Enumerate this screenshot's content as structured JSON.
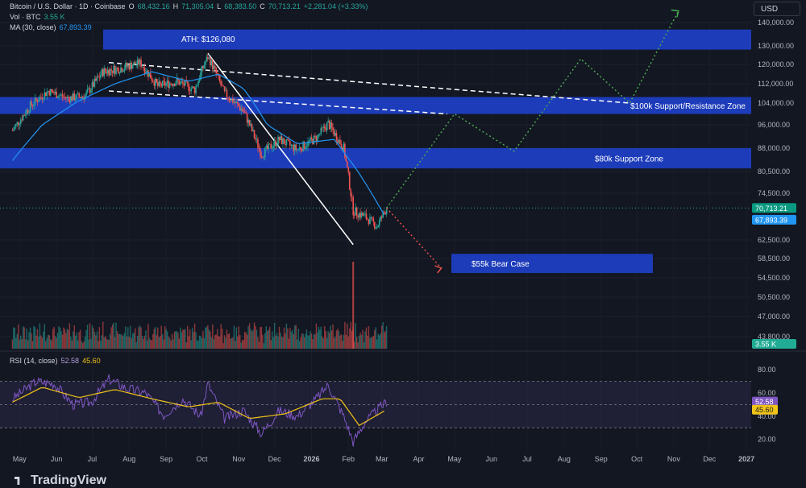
{
  "header": {
    "symbol": "Bitcoin / U.S. Dollar · 1D · Coinbase",
    "open_label": "O",
    "open": "68,432.16",
    "high_label": "H",
    "high": "71,305.04",
    "low_label": "L",
    "low": "68,383.50",
    "close_label": "C",
    "close": "70,713.21",
    "change": "+2,281.04 (+3.33%)",
    "vol_label": "Vol · BTC",
    "vol": "3.55 K",
    "ma_label": "MA (30, close)",
    "ma": "67,893.39",
    "rsi_label": "RSI (14, close)",
    "rsi": "52.58",
    "rsi_ma": "45.60"
  },
  "currency_button": "USD",
  "brand": "TradingView",
  "colors": {
    "background": "#131722",
    "zone": "#1e40c8",
    "up": "#26a69a",
    "down": "#ef5350",
    "ma": "#2196f3",
    "rsi": "#7e57c2",
    "rsi_ma": "#f0c419",
    "bull_path": "#4caf50",
    "bear_path": "#ef5350"
  },
  "chart_data": {
    "type": "candlestick",
    "price_axis_ticks": [
      "140,000.00",
      "130,000.00",
      "120,000.00",
      "112,000.00",
      "104,000.00",
      "96,000.00",
      "88,000.00",
      "80,500.00",
      "74,500.00",
      "62,500.00",
      "58,500.00",
      "54,500.00",
      "50,500.00",
      "47,000.00",
      "43,800.00"
    ],
    "time_axis_ticks": [
      "May",
      "Jun",
      "Jul",
      "Aug",
      "Sep",
      "Oct",
      "Nov",
      "Dec",
      "2026",
      "Feb",
      "Mar",
      "Apr",
      "May",
      "Jun",
      "Jul",
      "Aug",
      "Sep",
      "Oct",
      "Nov",
      "Dec",
      "2027"
    ],
    "rsi_axis_ticks": [
      "80.00",
      "60.00",
      "40.00",
      "20.00"
    ],
    "last_price": {
      "value": 70713.21,
      "label": "70,713.21"
    },
    "ma_value": {
      "value": 67893.39,
      "label": "67,893.39"
    },
    "volume_value": "3.55 K",
    "rsi_value": "52.58",
    "rsi_ma_value": "45.60",
    "zones": [
      {
        "label": "",
        "low": 128000,
        "high": 137000
      },
      {
        "label": "$100k Support/Resistance Zone",
        "low": 100000,
        "high": 106500
      },
      {
        "label": "$80k Support Zone",
        "low": 81500,
        "high": 88000
      },
      {
        "label": "$55k Bear Case",
        "low": 55500,
        "high": 59500
      }
    ],
    "annotations": [
      {
        "text": "ATH: $126,080",
        "value": 126080
      }
    ],
    "price_path": [
      {
        "t": "2025-04-25",
        "p": 94000
      },
      {
        "t": "2025-05-10",
        "p": 103000
      },
      {
        "t": "2025-05-25",
        "p": 109000
      },
      {
        "t": "2025-06-10",
        "p": 106000
      },
      {
        "t": "2025-06-25",
        "p": 107000
      },
      {
        "t": "2025-07-10",
        "p": 117000
      },
      {
        "t": "2025-07-25",
        "p": 118500
      },
      {
        "t": "2025-08-10",
        "p": 121000
      },
      {
        "t": "2025-08-25",
        "p": 111000
      },
      {
        "t": "2025-09-10",
        "p": 113000
      },
      {
        "t": "2025-09-25",
        "p": 109500
      },
      {
        "t": "2025-10-06",
        "p": 124000
      },
      {
        "t": "2025-10-20",
        "p": 108000
      },
      {
        "t": "2025-11-05",
        "p": 101000
      },
      {
        "t": "2025-11-20",
        "p": 86000
      },
      {
        "t": "2025-12-05",
        "p": 91000
      },
      {
        "t": "2025-12-20",
        "p": 87500
      },
      {
        "t": "2026-01-05",
        "p": 91500
      },
      {
        "t": "2026-01-15",
        "p": 96500
      },
      {
        "t": "2026-01-28",
        "p": 88000
      },
      {
        "t": "2026-02-05",
        "p": 70000
      },
      {
        "t": "2026-02-15",
        "p": 68500
      },
      {
        "t": "2026-02-25",
        "p": 66000
      },
      {
        "t": "2026-03-05",
        "p": 70713
      }
    ],
    "ma_path": [
      {
        "t": "2025-04-25",
        "p": 84000
      },
      {
        "t": "2025-05-20",
        "p": 96000
      },
      {
        "t": "2025-06-20",
        "p": 105000
      },
      {
        "t": "2025-07-20",
        "p": 112000
      },
      {
        "t": "2025-08-20",
        "p": 117000
      },
      {
        "t": "2025-09-20",
        "p": 113000
      },
      {
        "t": "2025-10-15",
        "p": 116000
      },
      {
        "t": "2025-11-05",
        "p": 110000
      },
      {
        "t": "2025-11-25",
        "p": 96000
      },
      {
        "t": "2025-12-20",
        "p": 89500
      },
      {
        "t": "2026-01-20",
        "p": 91000
      },
      {
        "t": "2026-02-10",
        "p": 80000
      },
      {
        "t": "2026-03-05",
        "p": 67893
      }
    ],
    "bull_projection": [
      {
        "t": "2026-03-05",
        "p": 70713
      },
      {
        "t": "2026-05-01",
        "p": 100000
      },
      {
        "t": "2026-06-20",
        "p": 87000
      },
      {
        "t": "2026-08-15",
        "p": 123000
      },
      {
        "t": "2026-09-25",
        "p": 104000
      },
      {
        "t": "2026-11-05",
        "p": 145000
      }
    ],
    "bear_projection": [
      {
        "t": "2026-03-05",
        "p": 70713
      },
      {
        "t": "2026-04-20",
        "p": 56500
      }
    ],
    "trendlines": [
      {
        "from": {
          "t": "2025-07-15",
          "p": 121000
        },
        "to": {
          "t": "2026-09-25",
          "p": 104000
        },
        "style": "dashed"
      },
      {
        "from": {
          "t": "2025-07-15",
          "p": 109000
        },
        "to": {
          "t": "2026-04-25",
          "p": 100000
        },
        "style": "dashed"
      },
      {
        "from": {
          "t": "2025-10-06",
          "p": 126080
        },
        "to": {
          "t": "2026-02-05",
          "p": 61500
        },
        "style": "solid"
      }
    ],
    "rsi_path": [
      {
        "t": "2025-04-25",
        "v": 55
      },
      {
        "t": "2025-05-15",
        "v": 70
      },
      {
        "t": "2025-05-30",
        "v": 68
      },
      {
        "t": "2025-06-15",
        "v": 50
      },
      {
        "t": "2025-06-30",
        "v": 52
      },
      {
        "t": "2025-07-15",
        "v": 72
      },
      {
        "t": "2025-07-30",
        "v": 64
      },
      {
        "t": "2025-08-15",
        "v": 60
      },
      {
        "t": "2025-08-30",
        "v": 41
      },
      {
        "t": "2025-09-15",
        "v": 55
      },
      {
        "t": "2025-09-30",
        "v": 40
      },
      {
        "t": "2025-10-06",
        "v": 68
      },
      {
        "t": "2025-10-20",
        "v": 38
      },
      {
        "t": "2025-11-05",
        "v": 45
      },
      {
        "t": "2025-11-20",
        "v": 25
      },
      {
        "t": "2025-12-05",
        "v": 45
      },
      {
        "t": "2025-12-20",
        "v": 40
      },
      {
        "t": "2026-01-05",
        "v": 55
      },
      {
        "t": "2026-01-15",
        "v": 67
      },
      {
        "t": "2026-01-28",
        "v": 40
      },
      {
        "t": "2026-02-05",
        "v": 18
      },
      {
        "t": "2026-02-15",
        "v": 35
      },
      {
        "t": "2026-02-25",
        "v": 45
      },
      {
        "t": "2026-03-05",
        "v": 52.58
      }
    ],
    "rsi_ma_path": [
      {
        "t": "2025-04-25",
        "v": 52
      },
      {
        "t": "2025-05-20",
        "v": 65
      },
      {
        "t": "2025-06-20",
        "v": 56
      },
      {
        "t": "2025-07-20",
        "v": 63
      },
      {
        "t": "2025-08-20",
        "v": 55
      },
      {
        "t": "2025-09-20",
        "v": 48
      },
      {
        "t": "2025-10-15",
        "v": 52
      },
      {
        "t": "2025-11-10",
        "v": 38
      },
      {
        "t": "2025-12-10",
        "v": 42
      },
      {
        "t": "2026-01-10",
        "v": 55
      },
      {
        "t": "2026-01-25",
        "v": 55
      },
      {
        "t": "2026-02-10",
        "v": 32
      },
      {
        "t": "2026-03-05",
        "v": 45.6
      }
    ]
  }
}
